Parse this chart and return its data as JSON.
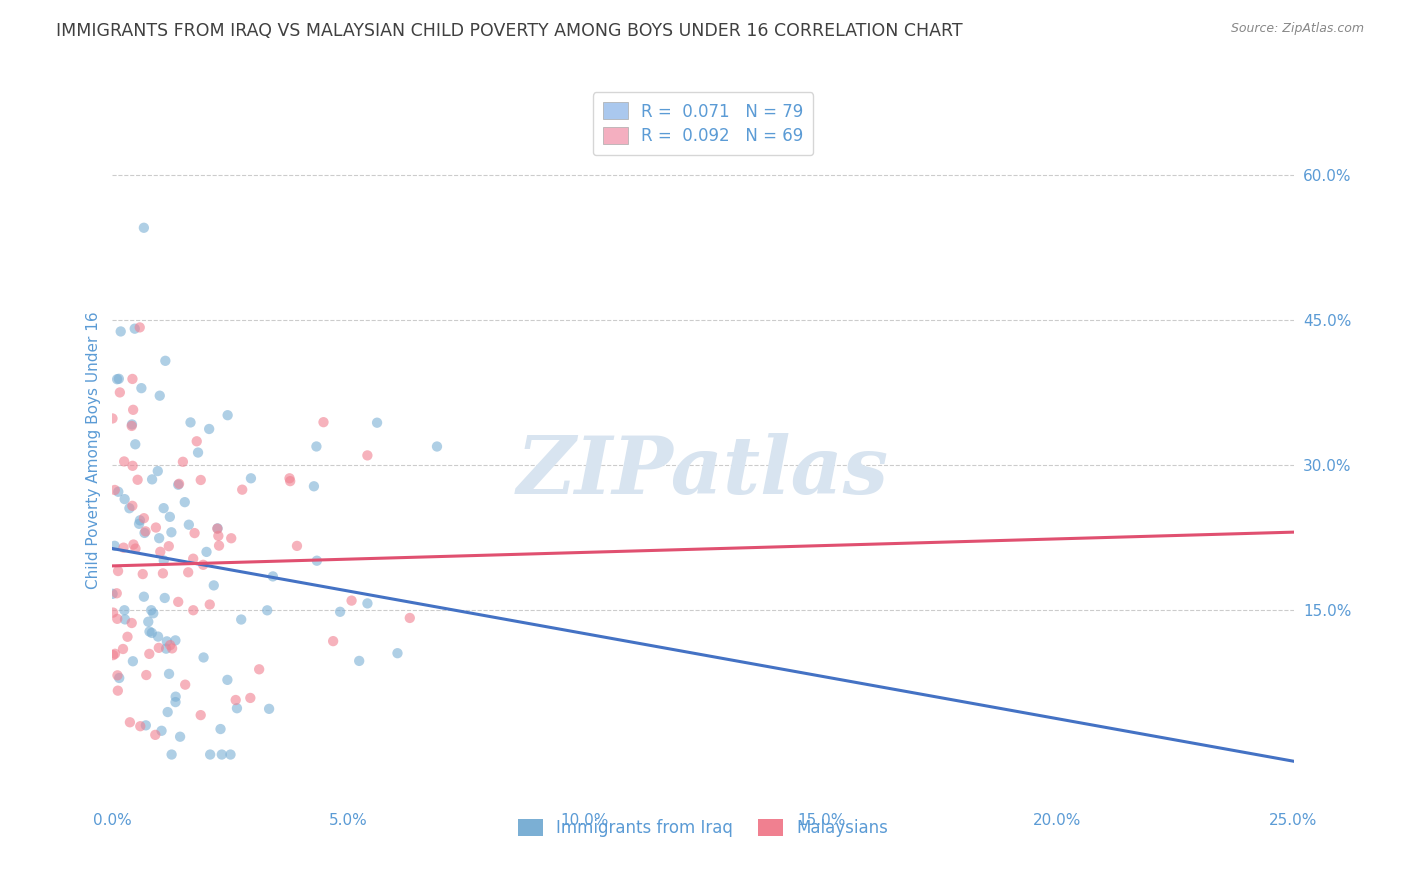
{
  "title": "IMMIGRANTS FROM IRAQ VS MALAYSIAN CHILD POVERTY AMONG BOYS UNDER 16 CORRELATION CHART",
  "source": "Source: ZipAtlas.com",
  "ylabel": "Child Poverty Among Boys Under 16",
  "xlim": [
    0.0,
    0.25
  ],
  "ylim": [
    -0.05,
    0.68
  ],
  "xticks": [
    0.0,
    0.05,
    0.1,
    0.15,
    0.2,
    0.25
  ],
  "xticklabels": [
    "0.0%",
    "5.0%",
    "10.0%",
    "15.0%",
    "20.0%",
    "25.0%"
  ],
  "yticks": [
    0.15,
    0.3,
    0.45,
    0.6
  ],
  "yticklabels": [
    "15.0%",
    "30.0%",
    "45.0%",
    "60.0%"
  ],
  "legend1_label": "R =  0.071   N = 79",
  "legend2_label": "R =  0.092   N = 69",
  "legend1_patch_color": "#aac8ee",
  "legend2_patch_color": "#f4afc0",
  "series1_color": "#7bafd4",
  "series2_color": "#f08090",
  "trendline1_color": "#4472c4",
  "trendline2_color": "#e05070",
  "watermark_text": "ZIPatlas",
  "watermark_color": "#d8e4f0",
  "grid_color": "#cccccc",
  "title_color": "#404040",
  "axis_label_color": "#5b9bd5",
  "tick_color": "#5b9bd5",
  "legend_text_color": "#5b9bd5",
  "bottom_legend1_label": "Immigrants from Iraq",
  "bottom_legend2_label": "Malaysians",
  "N1": 79,
  "N2": 69,
  "R1": 0.071,
  "R2": 0.092
}
